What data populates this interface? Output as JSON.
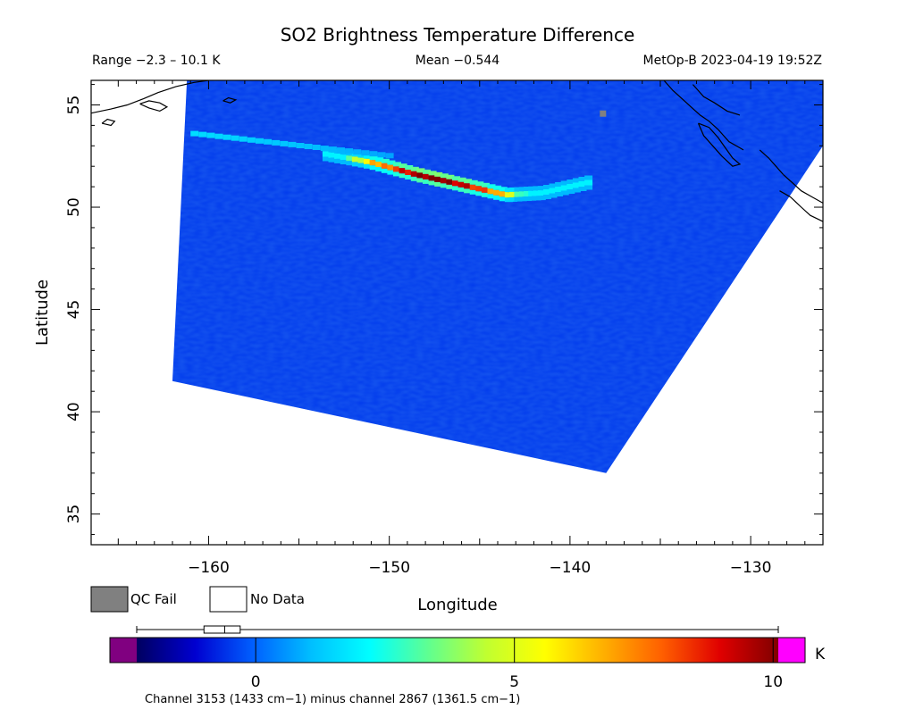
{
  "header": {
    "title": "SO2 Brightness Temperature Difference",
    "range_text": "Range −2.3 – 10.1 K",
    "mean_text": "Mean −0.544",
    "satellite_text": "MetOp-B 2023-04-19 19:52Z"
  },
  "map": {
    "projection": "lon-lat",
    "lon_range": [
      -166.5,
      -126.0
    ],
    "lat_range": [
      33.5,
      56.2
    ],
    "xlabel": "Longitude",
    "ylabel": "Latitude",
    "lon_ticks": [
      -160,
      -150,
      -140,
      -130
    ],
    "lon_tick_labels": [
      "−160",
      "−150",
      "−140",
      "−130"
    ],
    "lat_ticks": [
      35,
      40,
      45,
      50,
      55
    ],
    "lat_tick_labels": [
      "35",
      "40",
      "45",
      "50",
      "55"
    ],
    "swath": {
      "corners_lonlat": [
        [
          -161.2,
          56.2
        ],
        [
          -126.0,
          56.2
        ],
        [
          -126.0,
          53.0
        ],
        [
          -138.0,
          37.0
        ],
        [
          -162.0,
          41.5
        ]
      ],
      "background_value_K": -0.5,
      "plume": {
        "path_lonlat": [
          [
            -153.5,
            52.6
          ],
          [
            -151.0,
            52.2
          ],
          [
            -148.5,
            51.6
          ],
          [
            -146.0,
            51.1
          ],
          [
            -143.5,
            50.6
          ],
          [
            -141.5,
            50.7
          ],
          [
            -139.0,
            51.2
          ]
        ],
        "peak_value_K": 10.1
      },
      "qc_fail_pixel_lonlat": [
        -138.2,
        54.6
      ]
    },
    "coastlines": [
      "alaska-peninsula",
      "southeast-alaska",
      "british-columbia"
    ]
  },
  "legend": {
    "qc_fail_label": "QC Fail",
    "qc_fail_color": "#808080",
    "no_data_label": "No Data",
    "no_data_color": "#ffffff"
  },
  "colorbar": {
    "min": -2.3,
    "max": 10.1,
    "ticks": [
      0,
      5,
      10
    ],
    "tick_labels": [
      "0",
      "5",
      "10"
    ],
    "unit": "K",
    "under_color": "#800080",
    "over_color": "#ff00ff",
    "stops": [
      "#000060",
      "#0000d0",
      "#0060ff",
      "#00c0ff",
      "#00ffff",
      "#60ff90",
      "#c0ff30",
      "#ffff00",
      "#ffb000",
      "#ff6000",
      "#e00000",
      "#800000"
    ],
    "boxplot": {
      "min": -2.3,
      "q1": -1.0,
      "median": -0.6,
      "q3": -0.3,
      "max": 10.1
    },
    "caption": "Channel 3153 (1433 cm−1) minus channel 2867 (1361.5 cm−1)"
  }
}
